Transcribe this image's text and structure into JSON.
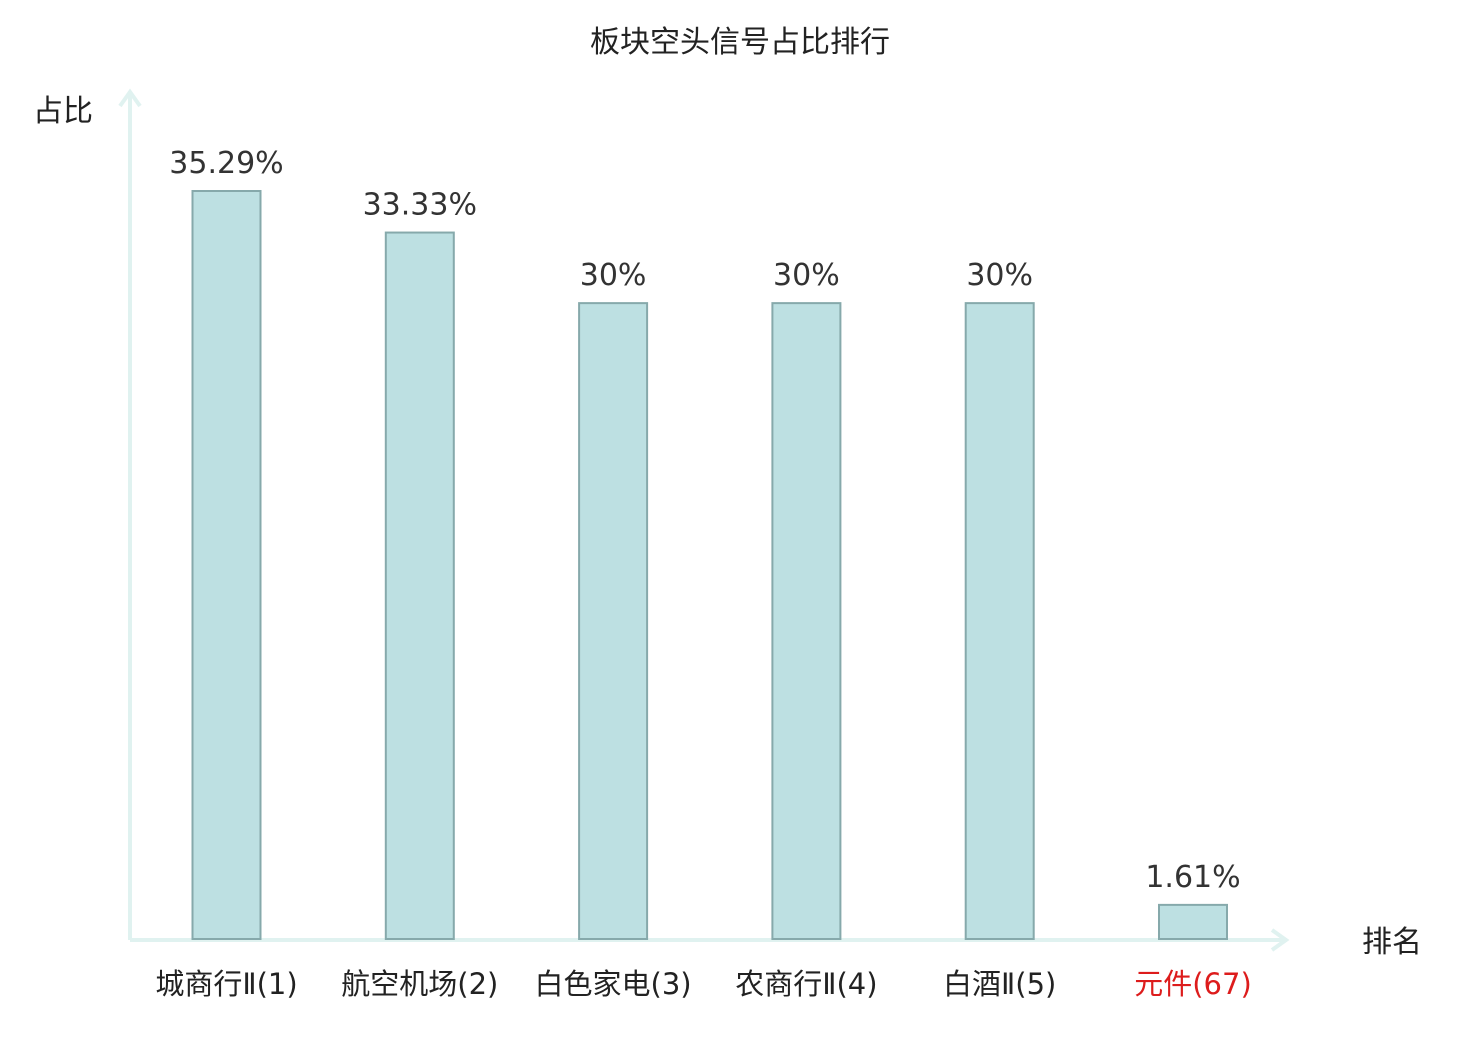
{
  "chart_data": {
    "type": "bar",
    "title": "板块空头信号占比排行",
    "ylabel": "占比",
    "xlabel": "排名",
    "categories": [
      "城商行Ⅱ(1)",
      "航空机场(2)",
      "白色家电(3)",
      "农商行Ⅱ(4)",
      "白酒Ⅱ(5)",
      "元件(67)"
    ],
    "values": [
      35.29,
      33.33,
      30,
      30,
      30,
      1.61
    ],
    "value_labels": [
      "35.29%",
      "33.33%",
      "30%",
      "30%",
      "30%",
      "1.61%"
    ],
    "highlight_index": 5,
    "ylim": [
      0,
      40
    ],
    "grid": false,
    "legend": "none"
  },
  "colors": {
    "bar_fill": "#bde0e2",
    "bar_stroke": "#86a9ab",
    "axis": "#e0f2f0",
    "text": "#333333",
    "highlight_text": "#dd1c1c"
  }
}
